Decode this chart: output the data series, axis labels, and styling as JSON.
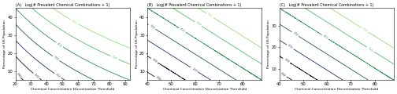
{
  "title": "Log(# Prevalent Chemical Combinations + 1)",
  "panels": [
    "A",
    "B",
    "C"
  ],
  "xlabel": "Chemical Concentration Discretization Threshold",
  "ylabel": "Percentage of US Population",
  "contour_levels": [
    0.0,
    1.0,
    2.0,
    3.0,
    4.0,
    5.0,
    6.0
  ],
  "level_colors": [
    "#0a0a14",
    "#151530",
    "#1e2d6e",
    "#1a5c50",
    "#2a9050",
    "#50c060",
    "#90e070"
  ],
  "panel_A": {
    "xlim": [
      20,
      93
    ],
    "ylim": [
      5,
      45
    ],
    "xticks": [
      20,
      30,
      40,
      50,
      60,
      70,
      80,
      90
    ],
    "yticks": [
      10,
      20,
      30,
      40
    ],
    "curvature": 2.2
  },
  "panel_B": {
    "xlim": [
      40,
      88
    ],
    "ylim": [
      5,
      45
    ],
    "xticks": [
      40,
      50,
      60,
      70,
      80
    ],
    "yticks": [
      10,
      20,
      30,
      40
    ],
    "curvature": 1.0
  },
  "panel_C": {
    "xlim": [
      40,
      88
    ],
    "ylim": [
      5,
      38
    ],
    "xticks": [
      40,
      50,
      60,
      70,
      80
    ],
    "yticks": [
      10,
      20,
      30
    ],
    "curvature": 1.0
  }
}
